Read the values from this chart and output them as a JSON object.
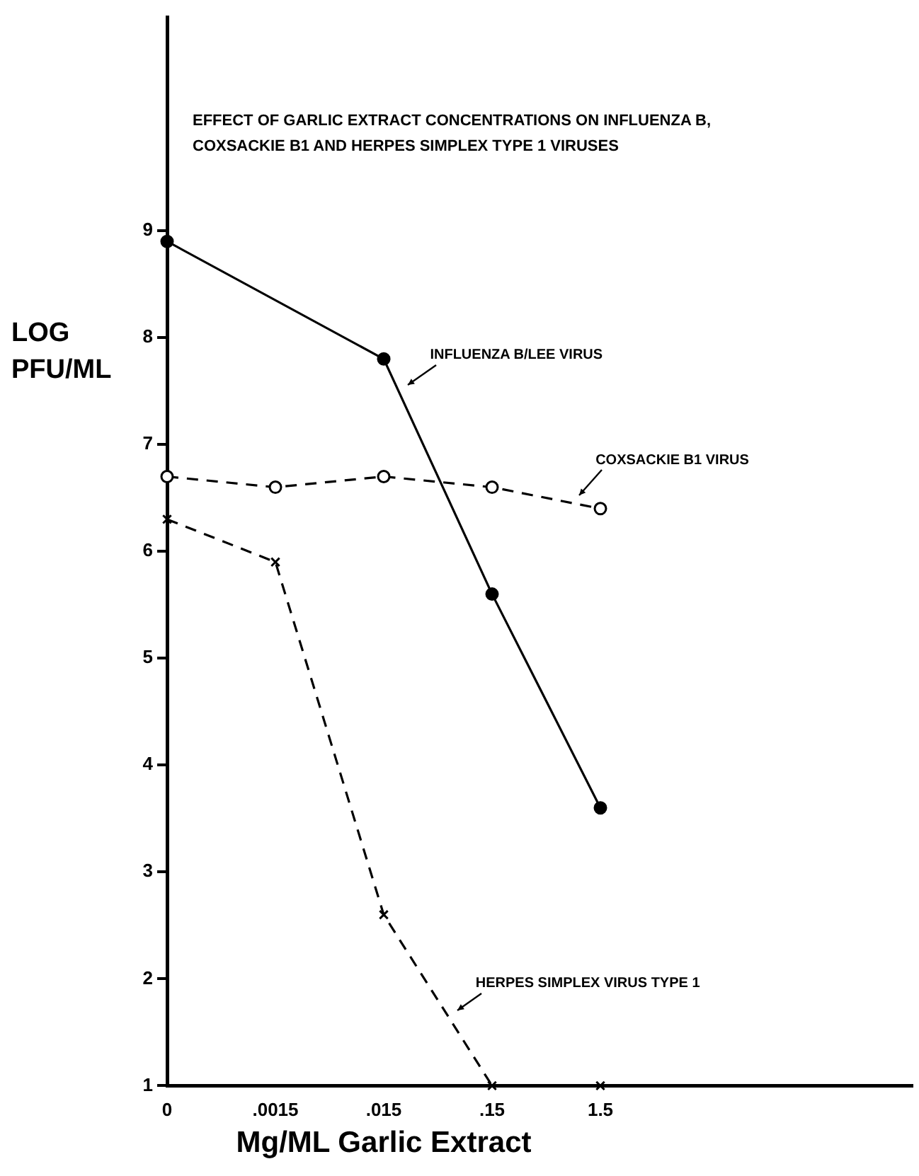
{
  "chart_data": {
    "type": "line",
    "title": "EFFECT OF GARLIC EXTRACT CONCENTRATIONS ON INFLUENZA B, COXSACKIE B1 AND HERPES SIMPLEX TYPE 1 VIRUSES",
    "xlabel": "Mg/ML Garlic Extract",
    "ylabel": "LOG PFU/ML",
    "categories": [
      "0",
      ".0015",
      ".015",
      ".15",
      "1.5"
    ],
    "series": [
      {
        "name": "INFLUENZA B/LEE VIRUS",
        "color": "#000000",
        "values": [
          8.9,
          null,
          7.8,
          5.6,
          3.6
        ],
        "marker": "circle",
        "line_style": "solid"
      },
      {
        "name": "COXSACKIE B1 VIRUS",
        "color": "#000000",
        "values": [
          6.7,
          6.6,
          6.7,
          6.6,
          6.4
        ],
        "marker": "circle",
        "line_style": "dashed"
      },
      {
        "name": "HERPES SIMPLEX VIRUS TYPE 1",
        "color": "#000000",
        "values": [
          6.3,
          5.9,
          2.6,
          1.0,
          1.0
        ],
        "marker": "cross",
        "line_style": "dashed"
      }
    ],
    "ylim": [
      1,
      11
    ],
    "yticks": [
      1,
      2,
      3,
      4,
      5,
      6,
      7,
      8,
      9
    ],
    "grid": false,
    "legend": false
  }
}
